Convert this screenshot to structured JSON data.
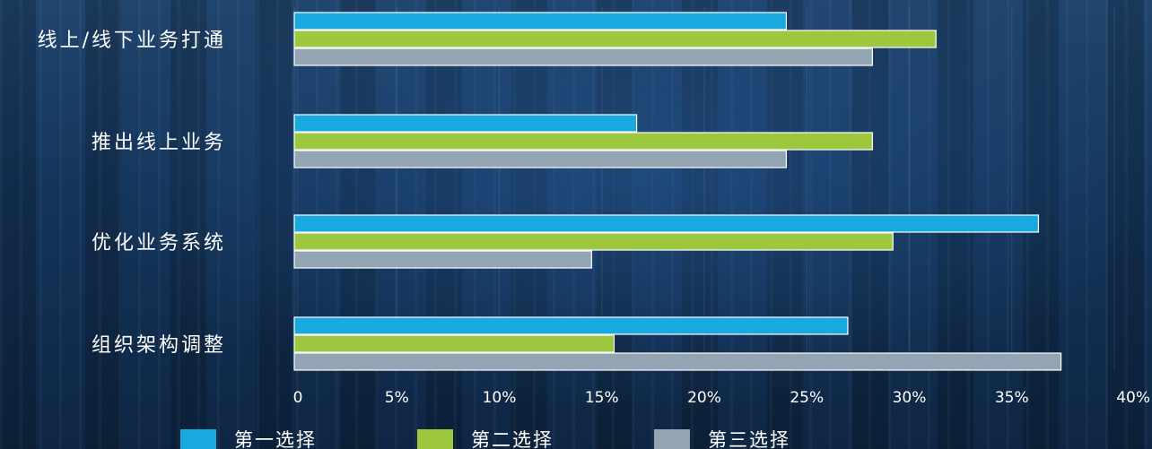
{
  "colors": {
    "series1": "#18a9df",
    "series2": "#9dc73f",
    "series3": "#93a5b2"
  },
  "chart_data": {
    "type": "bar",
    "orientation": "horizontal",
    "categories": [
      "线上/线下业务打通",
      "推出线上业务",
      "优化业务系统",
      "组织架构调整"
    ],
    "series": [
      {
        "name": "第一选择",
        "values": [
          24,
          16.7,
          36.3,
          27
        ]
      },
      {
        "name": "第二选择",
        "values": [
          31.3,
          28.2,
          29.2,
          15.6
        ]
      },
      {
        "name": "第三选择",
        "values": [
          28.2,
          24,
          14.5,
          37.4
        ]
      }
    ],
    "xlim": [
      0,
      40
    ],
    "x_ticks": [
      "0",
      "5%",
      "10%",
      "15%",
      "20%",
      "25%",
      "30%",
      "35%",
      "40%"
    ],
    "grid": true,
    "legend_position": "bottom"
  }
}
